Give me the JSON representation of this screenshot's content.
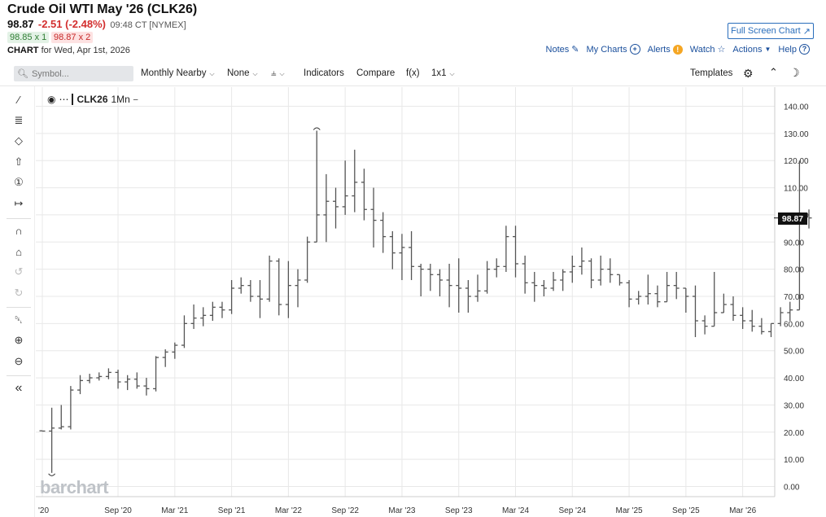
{
  "header": {
    "title": "Crude Oil WTI May '26 (CLK26)",
    "last": "98.87",
    "change": "-2.51 (-2.48%)",
    "time": "09:48 CT [NYMEX]",
    "bid": "98.85 x 1",
    "ask": "98.87 x 2",
    "chart_label": "CHART",
    "chart_date": "for Wed, Apr 1st, 2026"
  },
  "links": {
    "fullscreen": "Full Screen Chart",
    "notes": "Notes",
    "mycharts": "My Charts",
    "alerts": "Alerts",
    "watch": "Watch",
    "actions": "Actions",
    "help": "Help"
  },
  "toolbar": {
    "symbol_placeholder": "Symbol...",
    "period": "Monthly Nearby",
    "overlay": "None",
    "indicators": "Indicators",
    "compare": "Compare",
    "fx": "f(x)",
    "layout": "1x1",
    "templates": "Templates"
  },
  "chart_label": {
    "symbol": "CLK26",
    "interval": "1Mn"
  },
  "watermark": "barchart",
  "last_price_tag": "98.87",
  "colors": {
    "bar": "#555555",
    "accent": "#1a4f9c",
    "negative": "#d32f2f",
    "grid": "#e8e8e8"
  },
  "chart_data": {
    "type": "ohlc",
    "y_ticks": [
      "140.00",
      "130.00",
      "120.00",
      "110.00",
      "100.00",
      "90.00",
      "80.00",
      "70.00",
      "60.00",
      "50.00",
      "40.00",
      "30.00",
      "20.00",
      "10.00",
      "0.00"
    ],
    "ylim": [
      0,
      140
    ],
    "x_ticks": [
      "'20",
      "Sep '20",
      "Mar '21",
      "Sep '21",
      "Mar '22",
      "Sep '22",
      "Mar '23",
      "Sep '23",
      "Mar '24",
      "Sep '24",
      "Mar '25",
      "Sep '25",
      "Mar '26"
    ],
    "x_tick_month_index": [
      0,
      8,
      14,
      20,
      26,
      32,
      38,
      44,
      50,
      56,
      62,
      68,
      74
    ],
    "bars": [
      [
        20.5,
        20.5,
        20.3,
        20.4
      ],
      [
        20.4,
        29,
        5,
        21.5
      ],
      [
        21.5,
        30,
        21,
        22
      ],
      [
        22,
        37,
        21,
        35.5
      ],
      [
        35.5,
        41,
        34,
        39
      ],
      [
        39,
        41.5,
        38,
        40
      ],
      [
        40,
        42,
        39,
        40.5
      ],
      [
        40.5,
        43.5,
        39.5,
        42
      ],
      [
        42,
        43,
        36,
        38.5
      ],
      [
        38.5,
        41,
        35.5,
        39.5
      ],
      [
        39.5,
        42,
        36,
        37
      ],
      [
        37,
        40,
        33.5,
        36
      ],
      [
        36,
        48,
        35,
        47.5
      ],
      [
        47.5,
        50.5,
        44,
        49.5
      ],
      [
        49.5,
        53,
        47,
        52
      ],
      [
        52,
        63,
        51,
        60
      ],
      [
        60,
        67,
        58,
        62
      ],
      [
        62,
        66,
        59,
        63
      ],
      [
        63,
        68,
        61,
        66
      ],
      [
        66,
        68,
        62,
        65
      ],
      [
        65,
        76,
        63.5,
        73
      ],
      [
        73,
        77,
        71,
        74
      ],
      [
        74,
        76,
        68,
        70
      ],
      [
        70,
        76,
        62,
        69
      ],
      [
        69,
        85,
        68,
        83
      ],
      [
        83,
        84,
        63,
        67
      ],
      [
        67,
        83,
        62,
        74
      ],
      [
        74,
        80,
        66,
        76
      ],
      [
        76,
        92,
        75,
        90
      ],
      [
        90,
        131,
        92,
        100
      ],
      [
        100,
        115,
        90,
        105
      ],
      [
        105,
        110,
        95,
        103
      ],
      [
        103,
        120,
        100,
        107
      ],
      [
        107,
        124,
        101,
        112
      ],
      [
        112,
        117,
        98,
        102
      ],
      [
        102,
        110,
        88,
        98
      ],
      [
        98,
        101,
        86,
        92
      ],
      [
        92,
        94,
        80,
        86
      ],
      [
        86,
        93,
        76,
        88
      ],
      [
        88,
        94,
        76,
        81
      ],
      [
        81,
        82,
        70,
        80
      ],
      [
        80,
        82,
        72,
        78
      ],
      [
        78,
        80,
        70,
        76
      ],
      [
        76,
        82,
        66,
        74
      ],
      [
        74,
        84,
        64,
        73
      ],
      [
        73,
        76,
        64,
        70
      ],
      [
        70,
        78,
        68,
        72
      ],
      [
        72,
        83,
        71,
        80
      ],
      [
        80,
        84,
        77,
        81
      ],
      [
        81,
        96,
        79,
        92
      ],
      [
        92,
        96,
        77,
        82
      ],
      [
        82,
        85,
        71,
        75
      ],
      [
        75,
        79,
        68,
        74
      ],
      [
        74,
        76,
        70,
        73
      ],
      [
        73,
        79,
        72,
        76
      ],
      [
        76,
        80,
        72,
        79
      ],
      [
        79,
        85,
        75,
        81
      ],
      [
        81,
        88,
        78,
        83
      ],
      [
        83,
        84,
        73,
        76
      ],
      [
        76,
        85,
        74,
        80
      ],
      [
        80,
        84,
        75,
        78
      ],
      [
        78,
        76,
        74,
        75
      ],
      [
        75,
        76,
        66,
        69
      ],
      [
        69,
        72,
        67,
        70
      ],
      [
        70,
        78,
        67,
        71
      ],
      [
        71,
        74,
        66,
        68
      ],
      [
        68,
        79,
        71,
        74
      ],
      [
        74,
        79,
        69,
        73
      ],
      [
        73,
        72,
        64,
        70
      ],
      [
        70,
        74,
        55,
        61
      ],
      [
        61,
        63,
        56,
        59
      ],
      [
        59,
        79,
        61,
        64
      ],
      [
        64,
        71,
        64,
        67
      ],
      [
        67,
        70,
        61,
        63
      ],
      [
        63,
        66,
        58,
        61
      ],
      [
        61,
        65,
        57,
        59
      ],
      [
        59,
        62,
        56,
        57
      ],
      [
        57,
        59,
        55,
        60
      ],
      [
        60,
        66,
        59,
        64
      ],
      [
        64,
        68,
        61,
        65
      ],
      [
        65,
        120,
        70,
        100
      ],
      [
        100,
        102,
        95,
        98.87
      ]
    ],
    "last": 98.87
  }
}
